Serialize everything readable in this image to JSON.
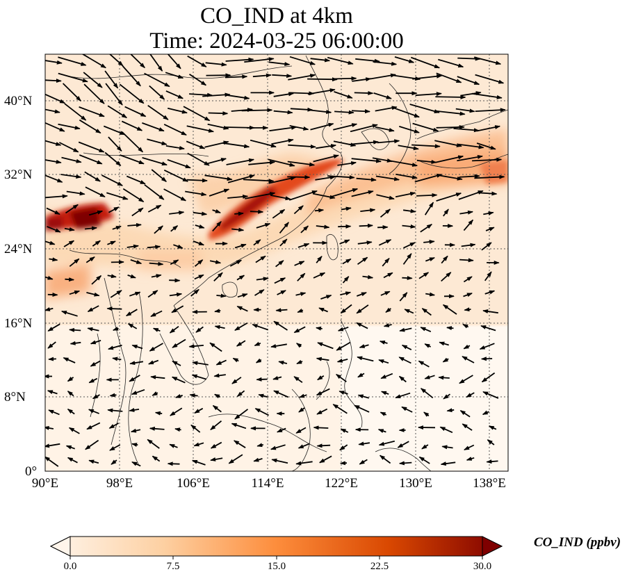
{
  "title": {
    "line1": "CO_IND at 4km",
    "line2": "Time: 2024-03-25 06:00:00"
  },
  "axes": {
    "lon_ticks": [
      "90°E",
      "98°E",
      "106°E",
      "114°E",
      "122°E",
      "130°E",
      "138°E"
    ],
    "lat_ticks": [
      "40°N",
      "32°N",
      "24°N",
      "16°N",
      "8°N",
      "0°"
    ],
    "lon_range": [
      90,
      140
    ],
    "lat_range": [
      0,
      45
    ],
    "grid": "dotted"
  },
  "colorbar": {
    "label": "CO_IND (ppbv)",
    "ticks": [
      "0.0",
      "7.5",
      "15.0",
      "22.5",
      "30.0"
    ],
    "range": [
      0,
      30
    ],
    "extend": "both",
    "colors": [
      "#fff5eb",
      "#fdd0a2",
      "#fd8d3c",
      "#d94801",
      "#7f0000"
    ]
  },
  "overlays": [
    "coastlines",
    "country-borders",
    "wind-vectors"
  ]
}
